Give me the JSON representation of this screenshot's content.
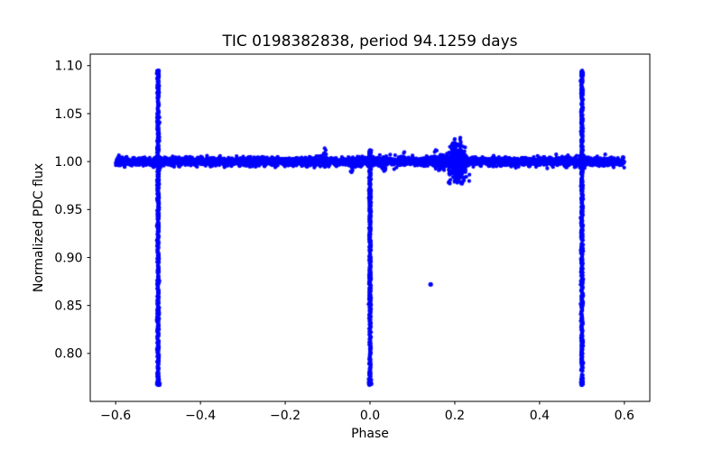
{
  "figure": {
    "background": "#ffffff"
  },
  "chart_data": {
    "type": "scatter",
    "title": "TIC 0198382838, period 94.1259 days",
    "xlabel": "Phase",
    "ylabel": "Normalized PDC flux",
    "grid": false,
    "legend": null,
    "marker_color": "#0000ff",
    "axis_color": "#000000",
    "xlim": [
      -0.66,
      0.66
    ],
    "ylim": [
      0.75,
      1.112
    ],
    "xticks": [
      -0.6,
      -0.4,
      -0.2,
      0.0,
      0.2,
      0.4,
      0.6
    ],
    "xtick_labels": [
      "−0.6",
      "−0.4",
      "−0.2",
      "0.0",
      "0.2",
      "0.4",
      "0.6"
    ],
    "yticks": [
      0.8,
      0.85,
      0.9,
      0.95,
      1.0,
      1.05,
      1.1
    ],
    "ytick_labels": [
      "0.80",
      "0.85",
      "0.90",
      "0.95",
      "1.00",
      "1.05",
      "1.10"
    ],
    "features": {
      "baseline_band": {
        "phase_min": -0.6,
        "phase_max": 0.6,
        "flux_mean": 1.0,
        "flux_sigma": 0.0023,
        "n": 3200
      },
      "eclipses": [
        {
          "phase": -0.5,
          "flux_bottom": 0.767,
          "flux_top": 1.095,
          "n_down": 520,
          "n_up": 210
        },
        {
          "phase": 0.0,
          "flux_bottom": 0.767,
          "flux_top": 1.012,
          "n_down": 520,
          "n_up": 40
        },
        {
          "phase": 0.5,
          "flux_bottom": 0.767,
          "flux_top": 1.095,
          "n_down": 520,
          "n_up": 210
        }
      ],
      "clumps": [
        {
          "phase_center": 0.207,
          "flux_center": 1.0,
          "phase_sigma": 0.01,
          "flux_sigma": 0.009,
          "phase_min": 0.182,
          "phase_max": 0.238,
          "flux_min": 0.977,
          "flux_max": 1.025,
          "n": 400
        },
        {
          "phase_center": 0.165,
          "flux_center": 1.0,
          "phase_sigma": 0.012,
          "flux_sigma": 0.004,
          "phase_min": 0.143,
          "phase_max": 0.19,
          "flux_min": 0.988,
          "flux_max": 1.012,
          "n": 130
        }
      ],
      "bumps": [
        {
          "phase": -0.107,
          "flux": 1.014,
          "n": 10
        },
        {
          "phase": -0.043,
          "flux": 0.989,
          "n": 8
        },
        {
          "phase": 0.033,
          "flux": 0.99,
          "n": 8
        },
        {
          "phase": 0.057,
          "flux": 0.992,
          "n": 6
        },
        {
          "phase": 0.081,
          "flux": 1.01,
          "n": 8
        },
        {
          "phase": 0.155,
          "flux": 1.012,
          "n": 5
        }
      ],
      "outlier": {
        "phase": 0.143,
        "flux": 0.872
      }
    }
  }
}
